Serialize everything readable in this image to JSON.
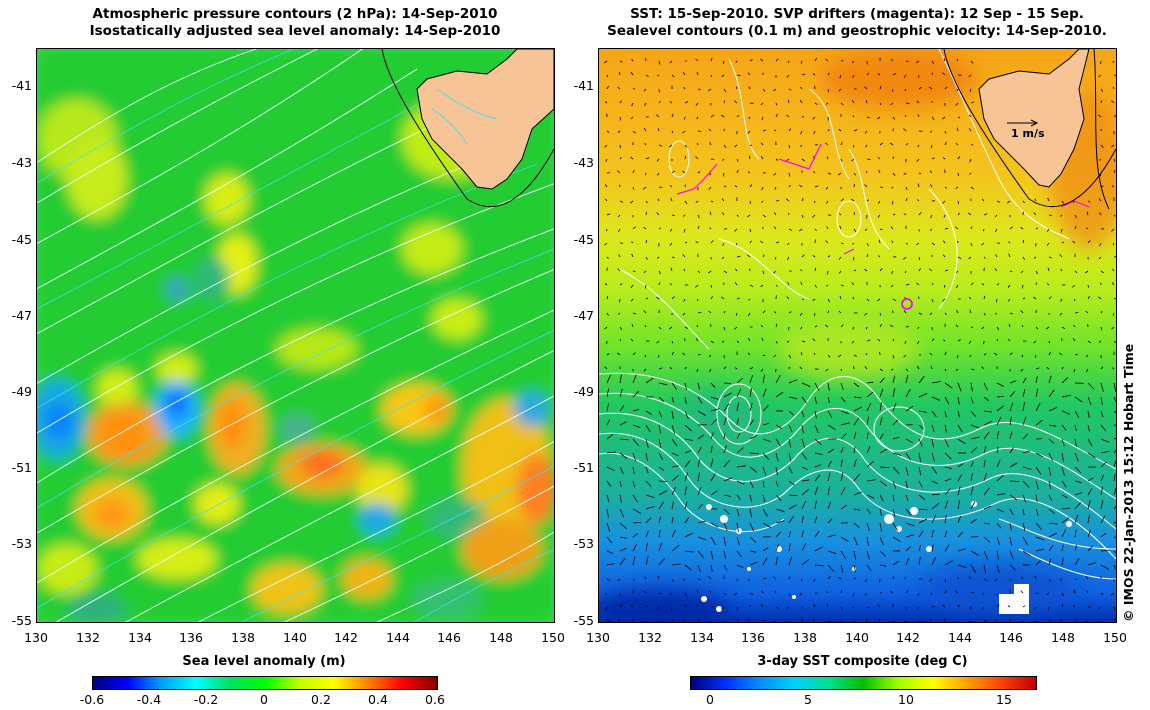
{
  "left_panel": {
    "title_line1": "Atmospheric pressure contours (2 hPa): 14-Sep-2010",
    "title_line2": "Isostatically adjusted sea level anomaly: 14-Sep-2010",
    "y_ticks": [
      "-41",
      "-43",
      "-45",
      "-47",
      "-49",
      "-51",
      "-53",
      "-55"
    ],
    "x_ticks": [
      "130",
      "132",
      "134",
      "136",
      "138",
      "140",
      "142",
      "144",
      "146",
      "148",
      "150"
    ],
    "colorbar_label": "Sea level anomaly (m)",
    "colorbar_ticks": [
      "-0.6",
      "-0.4",
      "-0.2",
      "0",
      "0.2",
      "0.4",
      "0.6"
    ],
    "colorbar_range": [
      -0.6,
      0.6
    ]
  },
  "right_panel": {
    "title_line1": "SST: 15-Sep-2010. SVP drifters (magenta): 12 Sep - 15 Sep.",
    "title_line2": "Sealevel contours (0.1 m) and geostrophic velocity: 14-Sep-2010.",
    "y_ticks": [
      "-41",
      "-43",
      "-45",
      "-47",
      "-49",
      "-51",
      "-53",
      "-55"
    ],
    "x_ticks": [
      "130",
      "132",
      "134",
      "136",
      "138",
      "140",
      "142",
      "144",
      "146",
      "148",
      "150"
    ],
    "colorbar_label": "3-day SST composite (deg C)",
    "colorbar_ticks": [
      "0",
      "5",
      "10",
      "15"
    ],
    "colorbar_range": [
      -1,
      17
    ],
    "velocity_scale_label": "1 m/s"
  },
  "credit": "© IMOS 22-Jan-2013 15:12 Hobart Time",
  "map_extent": {
    "lon": [
      130,
      150
    ],
    "lat": [
      -55,
      -40
    ]
  },
  "colors": {
    "land": "#f7c496",
    "slaColormap": [
      "#000080",
      "#0000ff",
      "#00a0ff",
      "#00ffff",
      "#00e060",
      "#00ff00",
      "#c0ff00",
      "#ffff00",
      "#ff8000",
      "#ff0000",
      "#800000"
    ],
    "sstColormap": [
      "#000080",
      "#0030ff",
      "#0090ff",
      "#00d0ff",
      "#00e090",
      "#00c000",
      "#a0ff00",
      "#ffff00",
      "#ffa000",
      "#ff4000",
      "#c00000"
    ],
    "drifter": "#ff00ff"
  }
}
